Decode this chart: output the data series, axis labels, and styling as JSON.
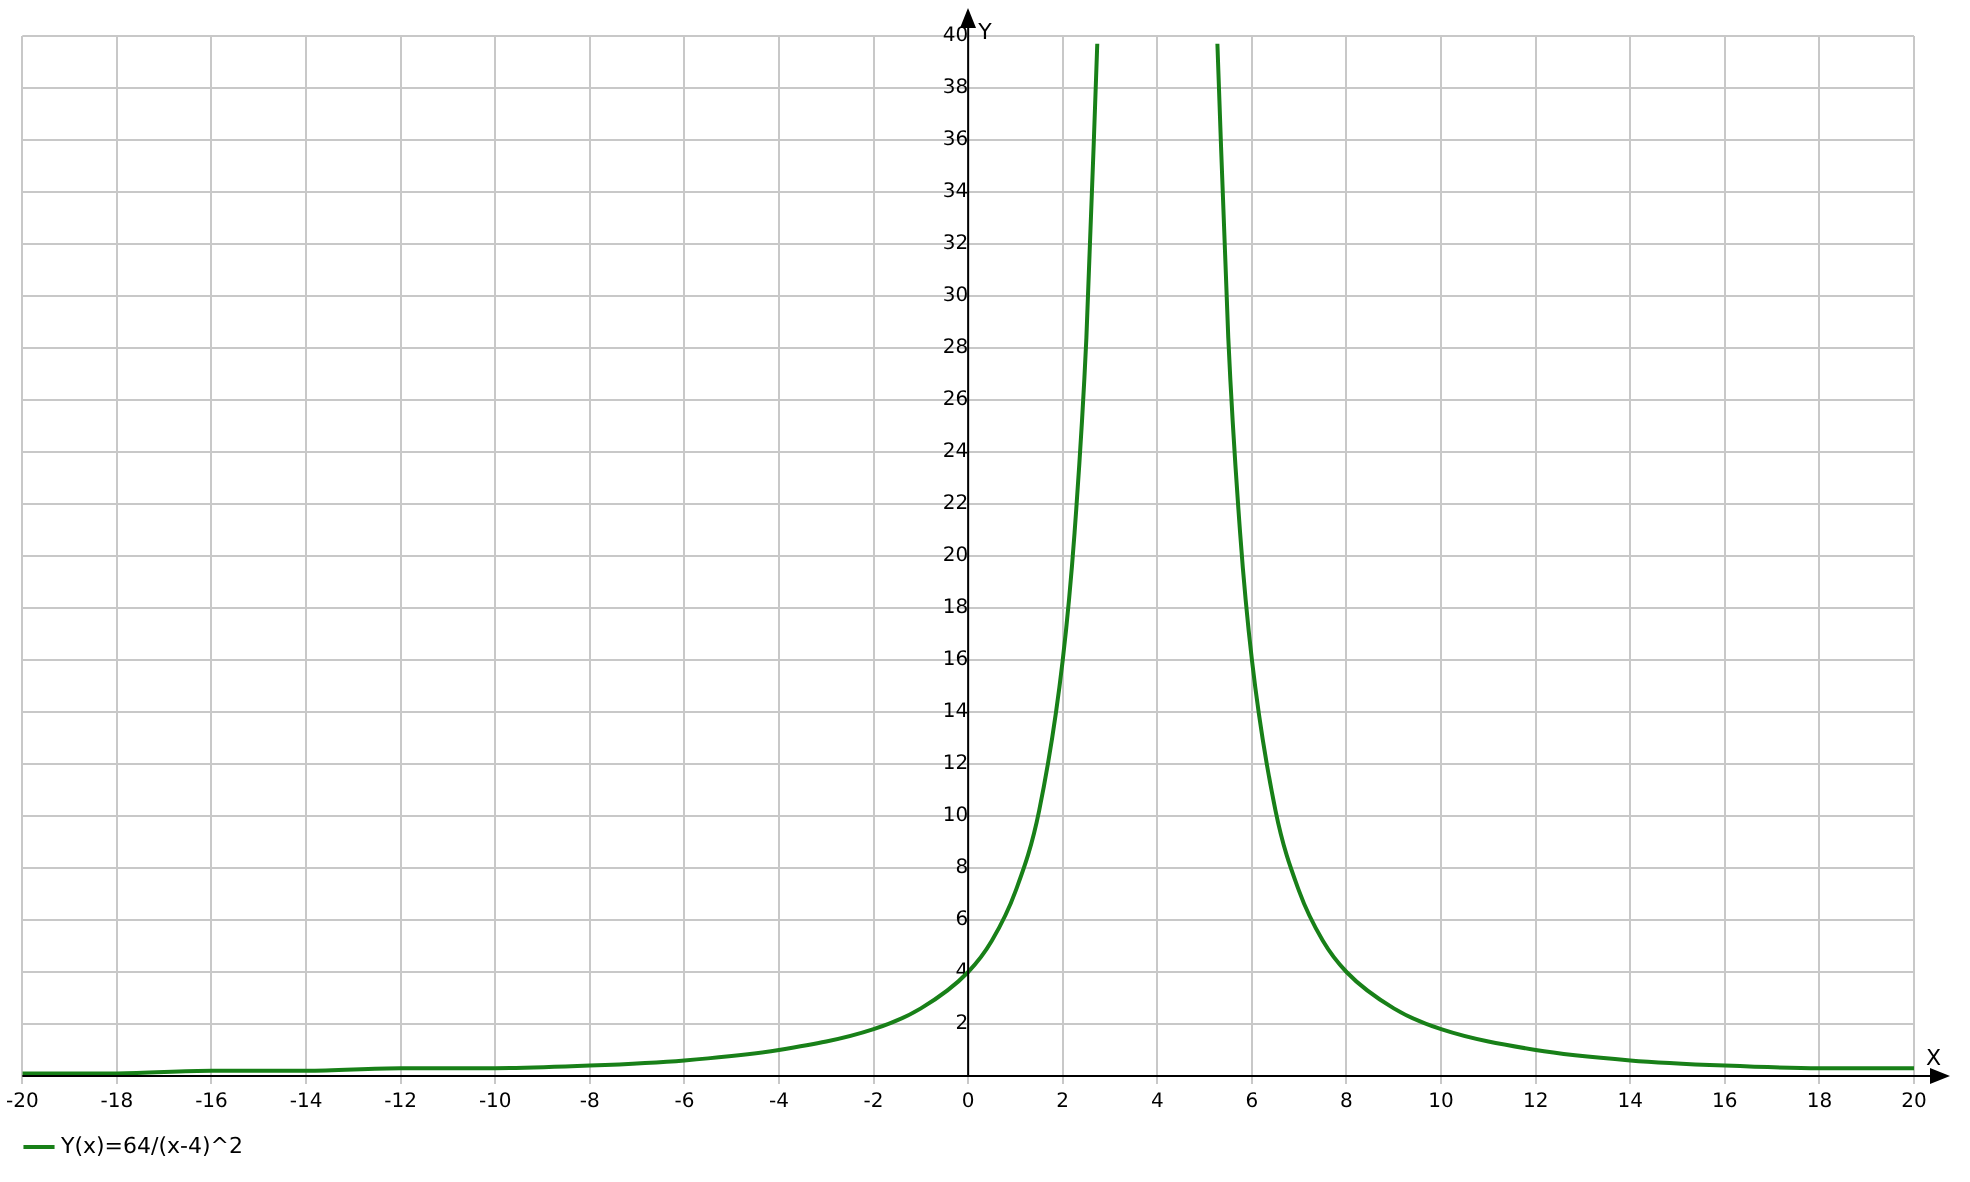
{
  "chart_data": {
    "type": "line",
    "xlabel": "X",
    "ylabel": "Y",
    "x": [
      -20,
      -18,
      -16,
      -14,
      -12,
      -10,
      -8,
      -6,
      -4,
      -2,
      -1,
      0,
      0.5,
      1,
      1.5,
      2,
      2.25,
      2.5,
      2.73,
      4,
      5.27,
      5.5,
      5.75,
      6,
      6.5,
      7,
      7.5,
      8,
      9,
      10,
      12,
      14,
      16,
      18,
      20
    ],
    "series": [
      {
        "name": "Y(x)=64/(x-4)^2",
        "color": "#188018",
        "values": [
          0.1,
          0.1,
          0.2,
          0.2,
          0.3,
          0.3,
          0.4,
          0.6,
          1,
          1.8,
          2.6,
          4,
          5.2,
          7.1,
          10.2,
          16,
          20.9,
          28.4,
          39.7,
          null,
          39.7,
          28.4,
          20.9,
          16,
          10.2,
          7.1,
          5.2,
          4,
          2.6,
          1.8,
          1,
          0.6,
          0.4,
          0.3,
          0.3
        ]
      }
    ],
    "xlim": [
      -20,
      20
    ],
    "xticks": [
      -20,
      -18,
      -16,
      -14,
      -12,
      -10,
      -8,
      -6,
      -4,
      -2,
      0,
      2,
      4,
      6,
      8,
      10,
      12,
      14,
      16,
      18,
      20
    ],
    "ylim": [
      0,
      40
    ],
    "yticks": [
      {
        "value": 0,
        "label": null
      },
      2,
      4,
      6,
      8,
      10,
      12,
      14,
      16,
      18,
      20,
      22,
      24,
      26,
      28,
      30,
      32,
      34,
      36,
      38,
      40
    ],
    "grid": true,
    "legend": "bottom"
  }
}
